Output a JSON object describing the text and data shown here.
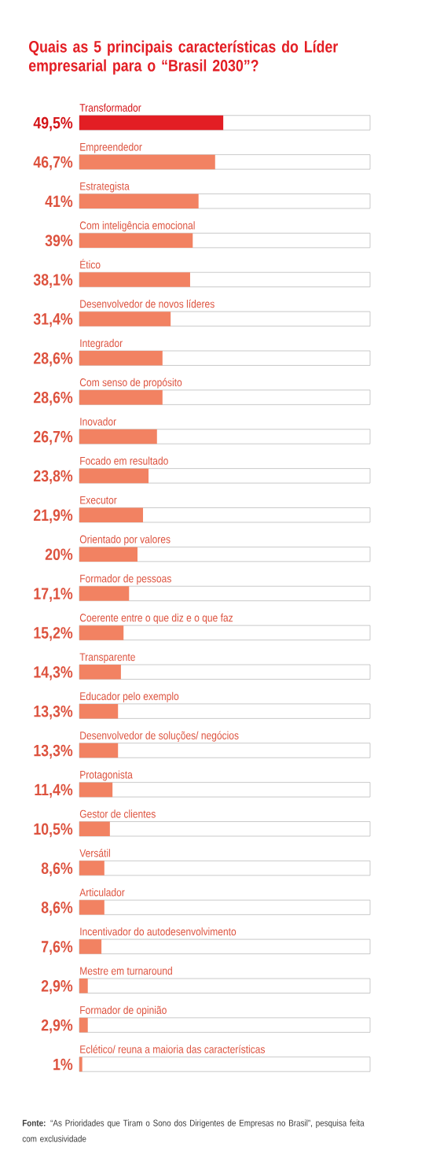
{
  "chart_data": {
    "type": "bar",
    "orientation": "horizontal",
    "title": "Quais as 5 principais características do Líder empresarial para o “Brasil 2030”?",
    "categories": [
      "Transformador",
      "Empreendedor",
      "Estrategista",
      "Com inteligência emocional",
      "Ético",
      "Desenvolvedor de novos líderes",
      "Integrador",
      "Com senso de propósito",
      "Inovador",
      "Focado em resultado",
      "Executor",
      "Orientado por valores",
      "Formador de pessoas",
      "Coerente entre o que diz e o que faz",
      "Transparente",
      "Educador pelo exemplo",
      "Desenvolvedor de soluções/ negócios",
      "Protagonista",
      "Gestor de clientes",
      "Versátil",
      "Articulador",
      "Incentivador do autodesenvolvimento",
      "Mestre em turnaround",
      "Formador de opinião",
      "Eclético/ reuna a maioria das características"
    ],
    "values": [
      49.5,
      46.7,
      41,
      39,
      38.1,
      31.4,
      28.6,
      28.6,
      26.7,
      23.8,
      21.9,
      20,
      17.1,
      15.2,
      14.3,
      13.3,
      13.3,
      11.4,
      10.5,
      8.6,
      8.6,
      7.6,
      2.9,
      2.9,
      1
    ],
    "value_labels": [
      "49,5%",
      "46,7%",
      "41%",
      "39%",
      "38,1%",
      "31,4%",
      "28,6%",
      "28,6%",
      "26,7%",
      "23,8%",
      "21,9%",
      "20%",
      "17,1%",
      "15,2%",
      "14,3%",
      "13,3%",
      "13,3%",
      "11,4%",
      "10,5%",
      "8,6%",
      "8,6%",
      "7,6%",
      "2,9%",
      "2,9%",
      "1%"
    ],
    "colors": [
      "#e31e24",
      "#f28262",
      "#f28262",
      "#f28262",
      "#f28262",
      "#f28262",
      "#f28262",
      "#f28262",
      "#f28262",
      "#f28262",
      "#f28262",
      "#f28262",
      "#f28262",
      "#f28262",
      "#f28262",
      "#f28262",
      "#f28262",
      "#f28262",
      "#f28262",
      "#f28262",
      "#f28262",
      "#f28262",
      "#f28262",
      "#f28262",
      "#f28262"
    ],
    "xlim": [
      0,
      100
    ],
    "annotations": [
      "**Fonte:** “As Prioridades que Tiram o Sono dos Dirigentes de Empresas no Brasil”, pesquisa feita com exclusividade"
    ]
  }
}
